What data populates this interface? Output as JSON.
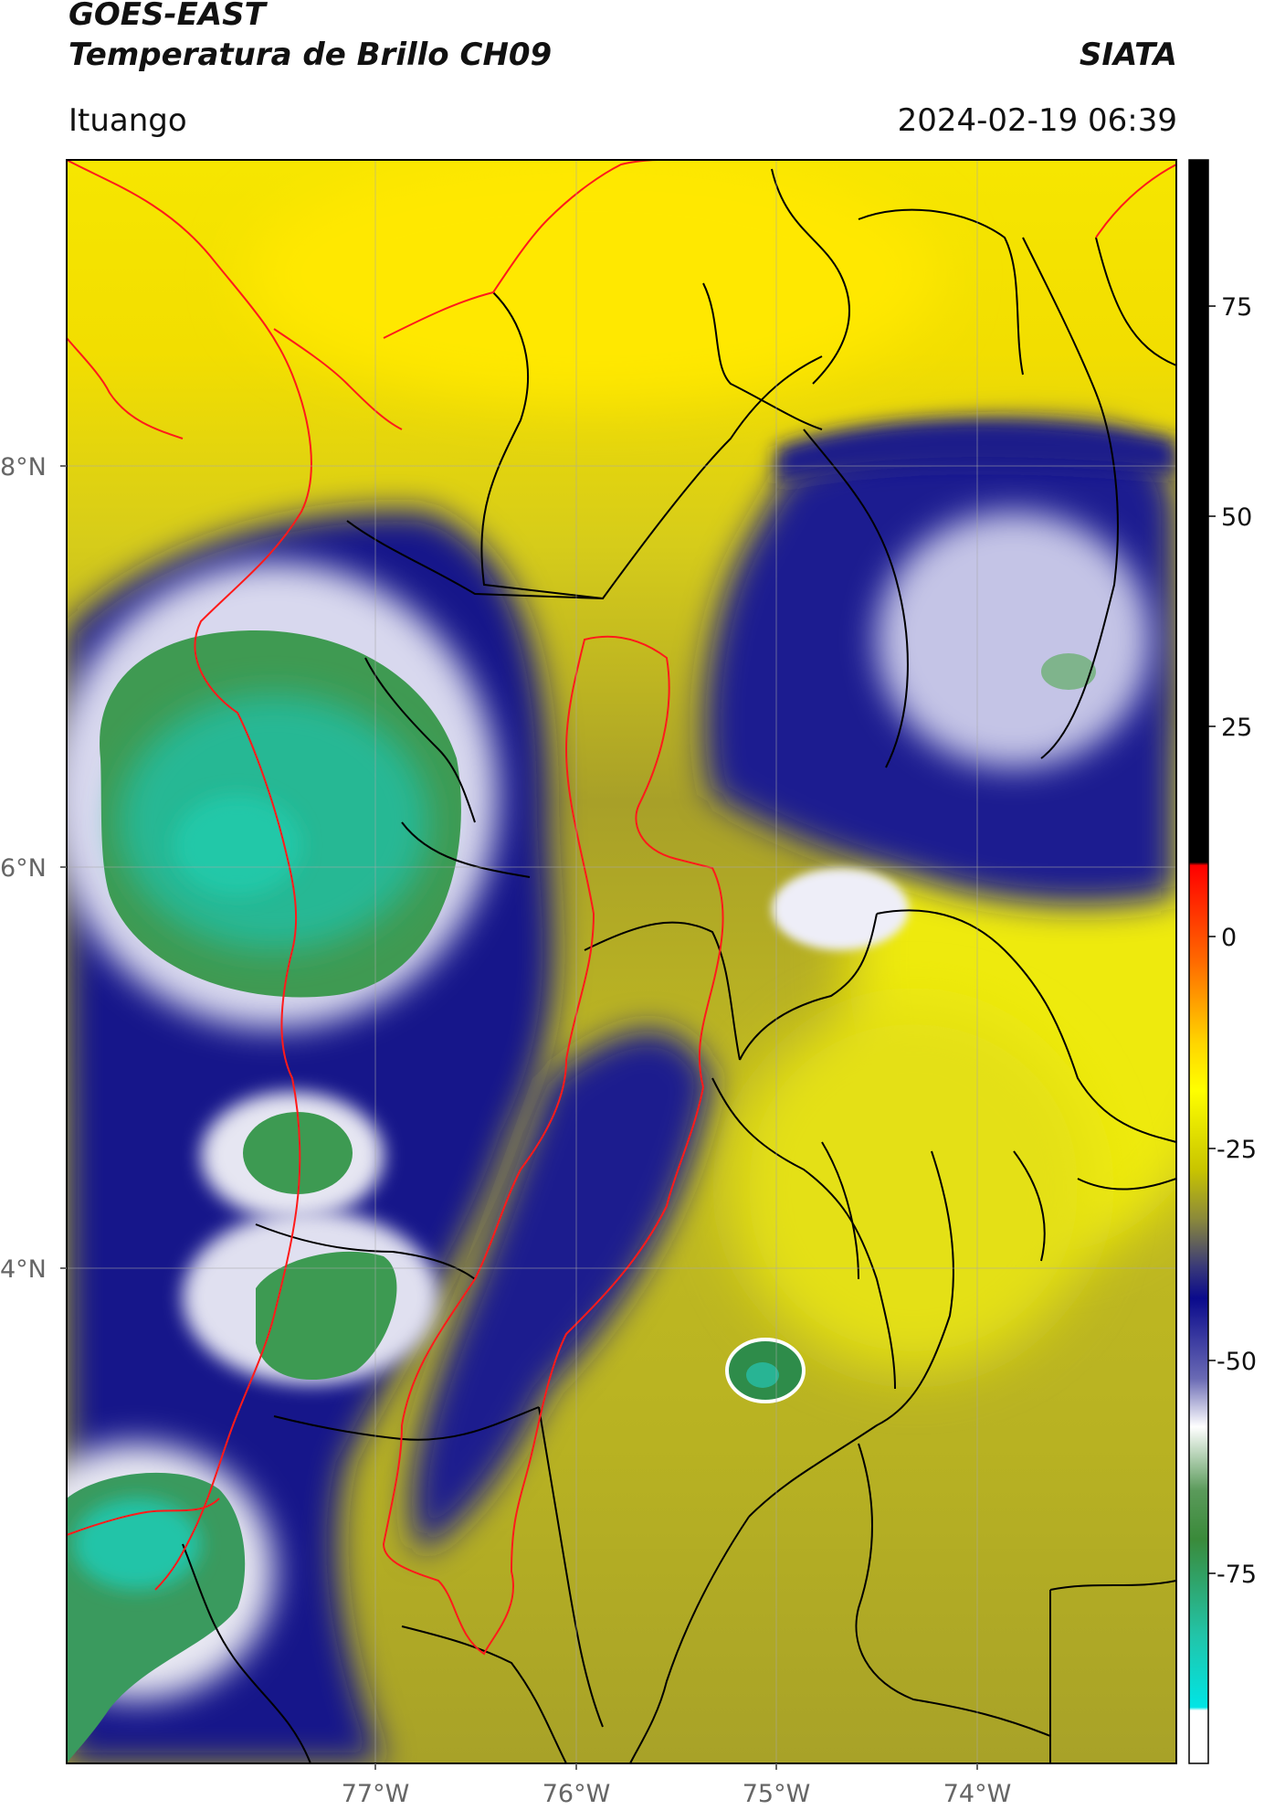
{
  "header": {
    "satellite": "GOES-EAST",
    "product": "Temperatura de Brillo CH09",
    "organization": "SIATA",
    "region": "Ituango",
    "timestamp": "2024-02-19 06:39"
  },
  "map": {
    "lat_labels": [
      "8°N",
      "6°N",
      "4°N"
    ],
    "lon_labels": [
      "77°W",
      "76°W",
      "75°W",
      "74°W"
    ],
    "grid": true
  },
  "colorbar": {
    "tick_labels": [
      "75",
      "50",
      "25",
      "0",
      "-25",
      "-50",
      "-75"
    ],
    "colors": {
      "warm_black": "#000000",
      "red": "#ff0000",
      "orange": "#ff9900",
      "yellow": "#ffff00",
      "olive": "#8c8c2a",
      "navy": "#0a0a8c",
      "white": "#ffffff",
      "green": "#3a8a3a",
      "teal": "#22c4a8",
      "cyan": "#00e5e5"
    }
  },
  "colors": {
    "state_borders": "#000000",
    "basin_outline": "#ff0000"
  }
}
